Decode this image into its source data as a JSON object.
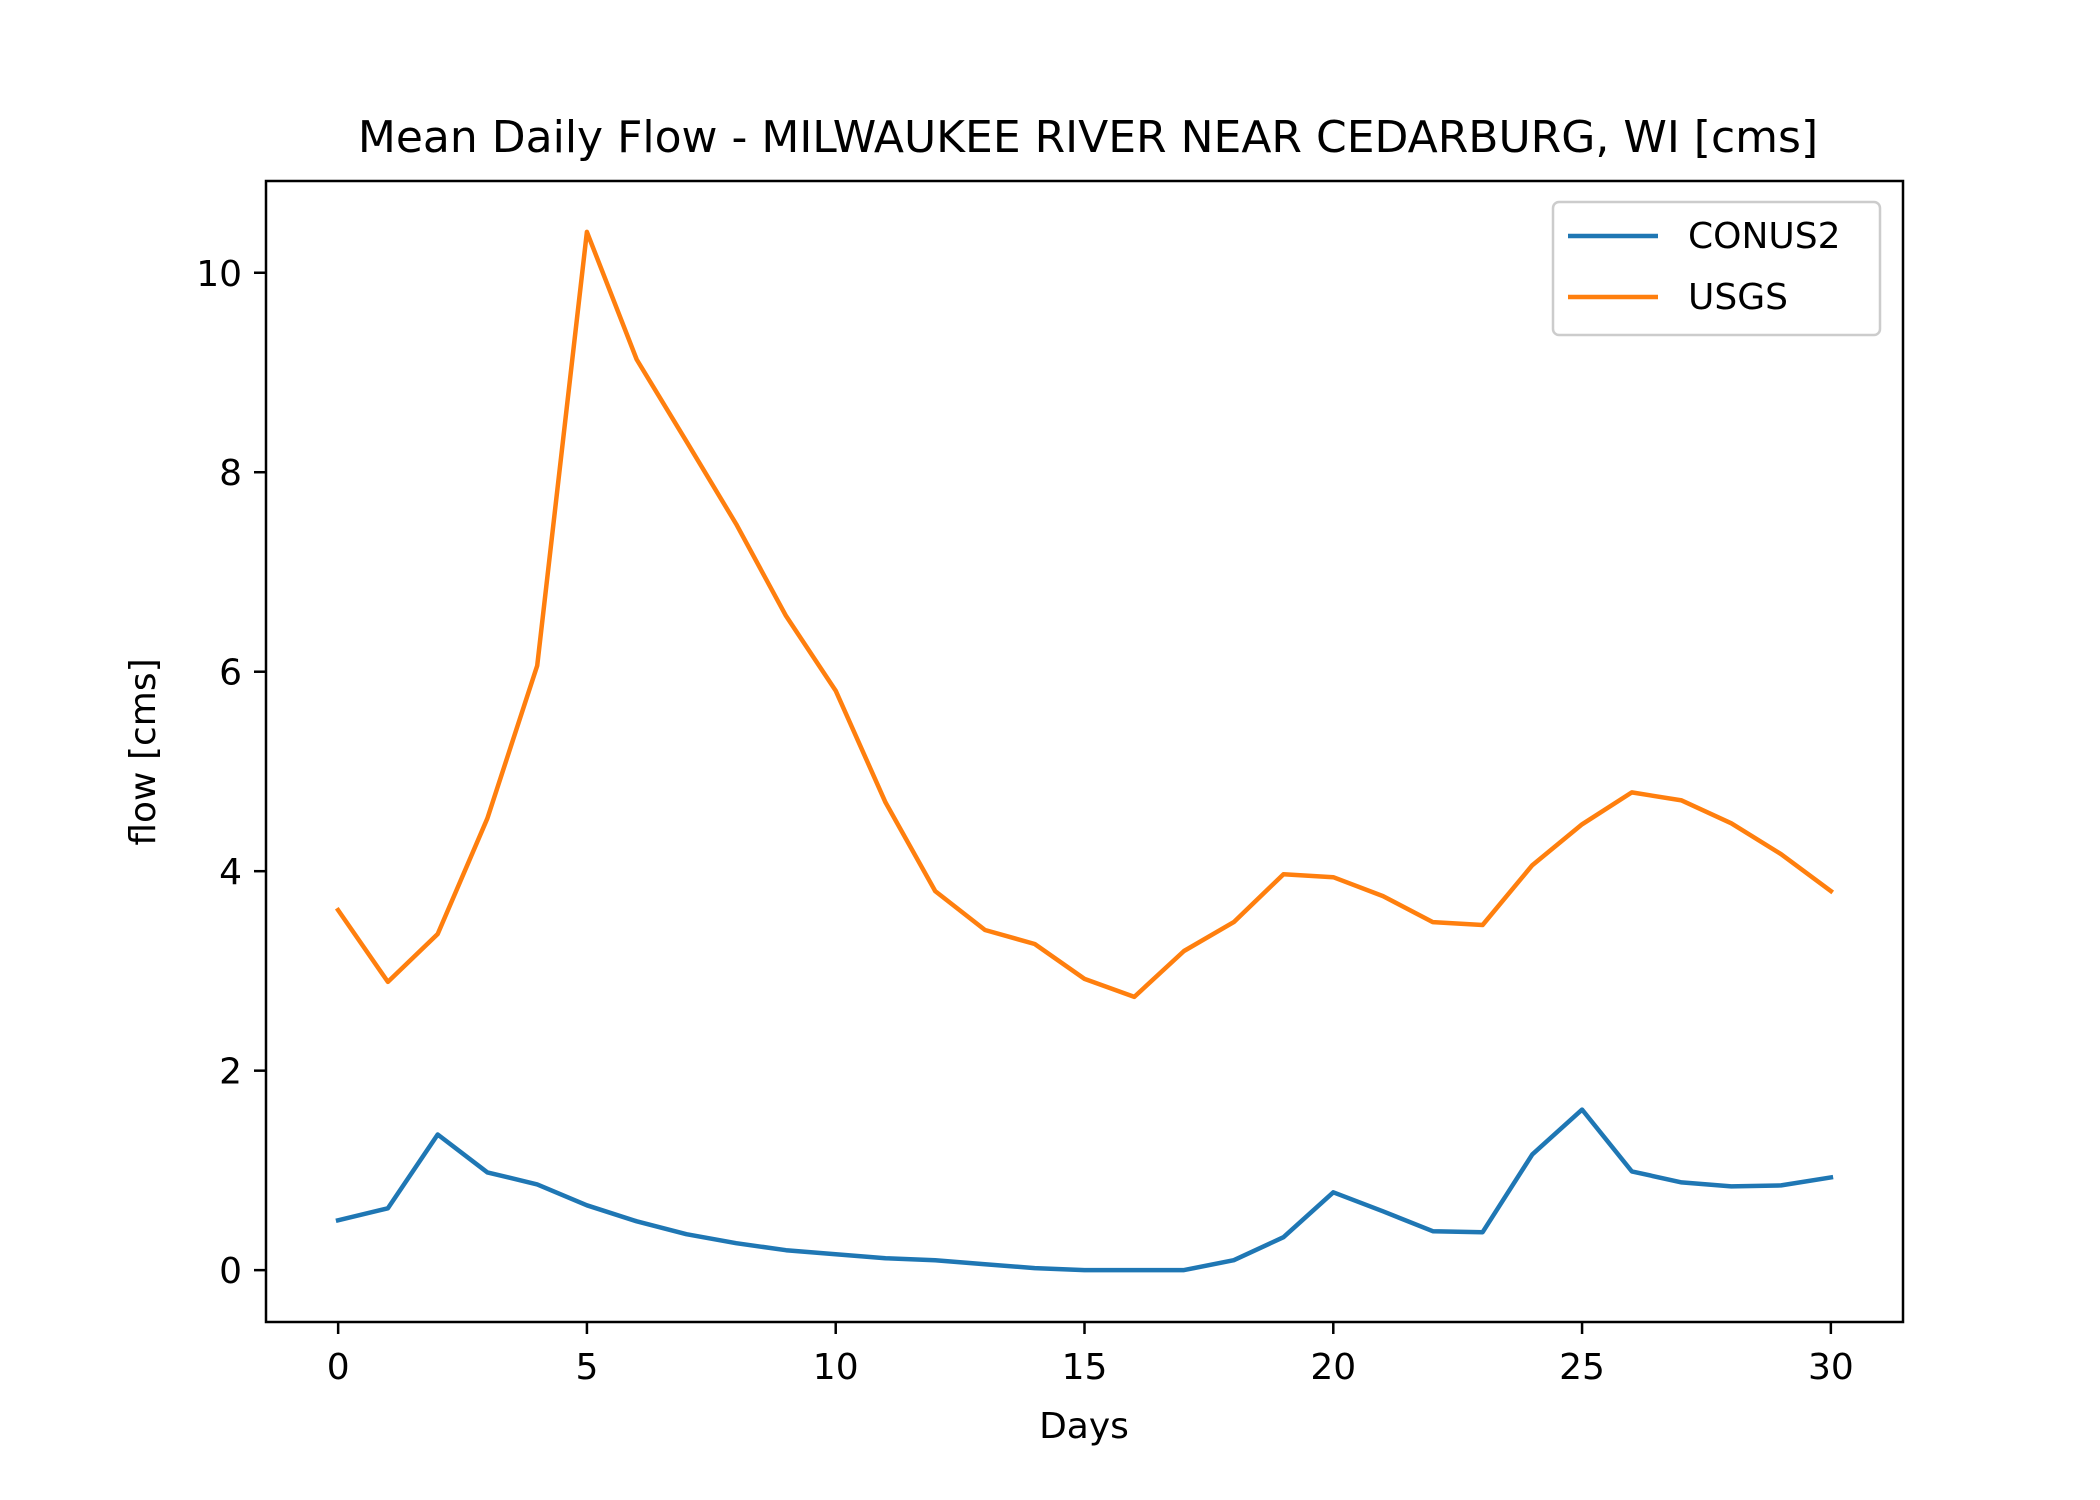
{
  "chart_data": {
    "type": "line",
    "title": "Mean Daily Flow - MILWAUKEE RIVER NEAR CEDARBURG, WI [cms]",
    "xlabel": "Days",
    "ylabel": "flow [cms]",
    "xlim": [
      -1.45,
      31.45
    ],
    "ylim": [
      -0.52,
      10.92
    ],
    "xticks": [
      0,
      5,
      10,
      15,
      20,
      25,
      30
    ],
    "yticks": [
      0,
      2,
      4,
      6,
      8,
      10
    ],
    "grid": false,
    "legend_position": "top-right",
    "x": [
      0,
      1,
      2,
      3,
      4,
      5,
      6,
      7,
      8,
      9,
      10,
      11,
      12,
      13,
      14,
      15,
      16,
      17,
      18,
      19,
      20,
      21,
      22,
      23,
      24,
      25,
      26,
      27,
      28,
      29,
      30
    ],
    "series": [
      {
        "name": "CONUS2",
        "color": "#1f77b4",
        "values": [
          0.5,
          0.62,
          1.36,
          0.98,
          0.86,
          0.65,
          0.49,
          0.36,
          0.27,
          0.2,
          0.16,
          0.12,
          0.1,
          0.06,
          0.02,
          0.0,
          0.0,
          0.0,
          0.1,
          0.33,
          0.78,
          0.59,
          0.39,
          0.38,
          1.16,
          1.61,
          0.99,
          0.88,
          0.84,
          0.85,
          0.93
        ]
      },
      {
        "name": "USGS",
        "color": "#ff7f0e",
        "values": [
          3.61,
          2.89,
          3.37,
          4.53,
          6.06,
          10.41,
          9.13,
          8.31,
          7.48,
          6.56,
          5.81,
          4.69,
          3.8,
          3.41,
          3.27,
          2.92,
          2.74,
          3.2,
          3.49,
          3.97,
          3.94,
          3.75,
          3.49,
          3.46,
          4.06,
          4.47,
          4.79,
          4.71,
          4.48,
          4.17,
          3.8
        ]
      }
    ]
  }
}
